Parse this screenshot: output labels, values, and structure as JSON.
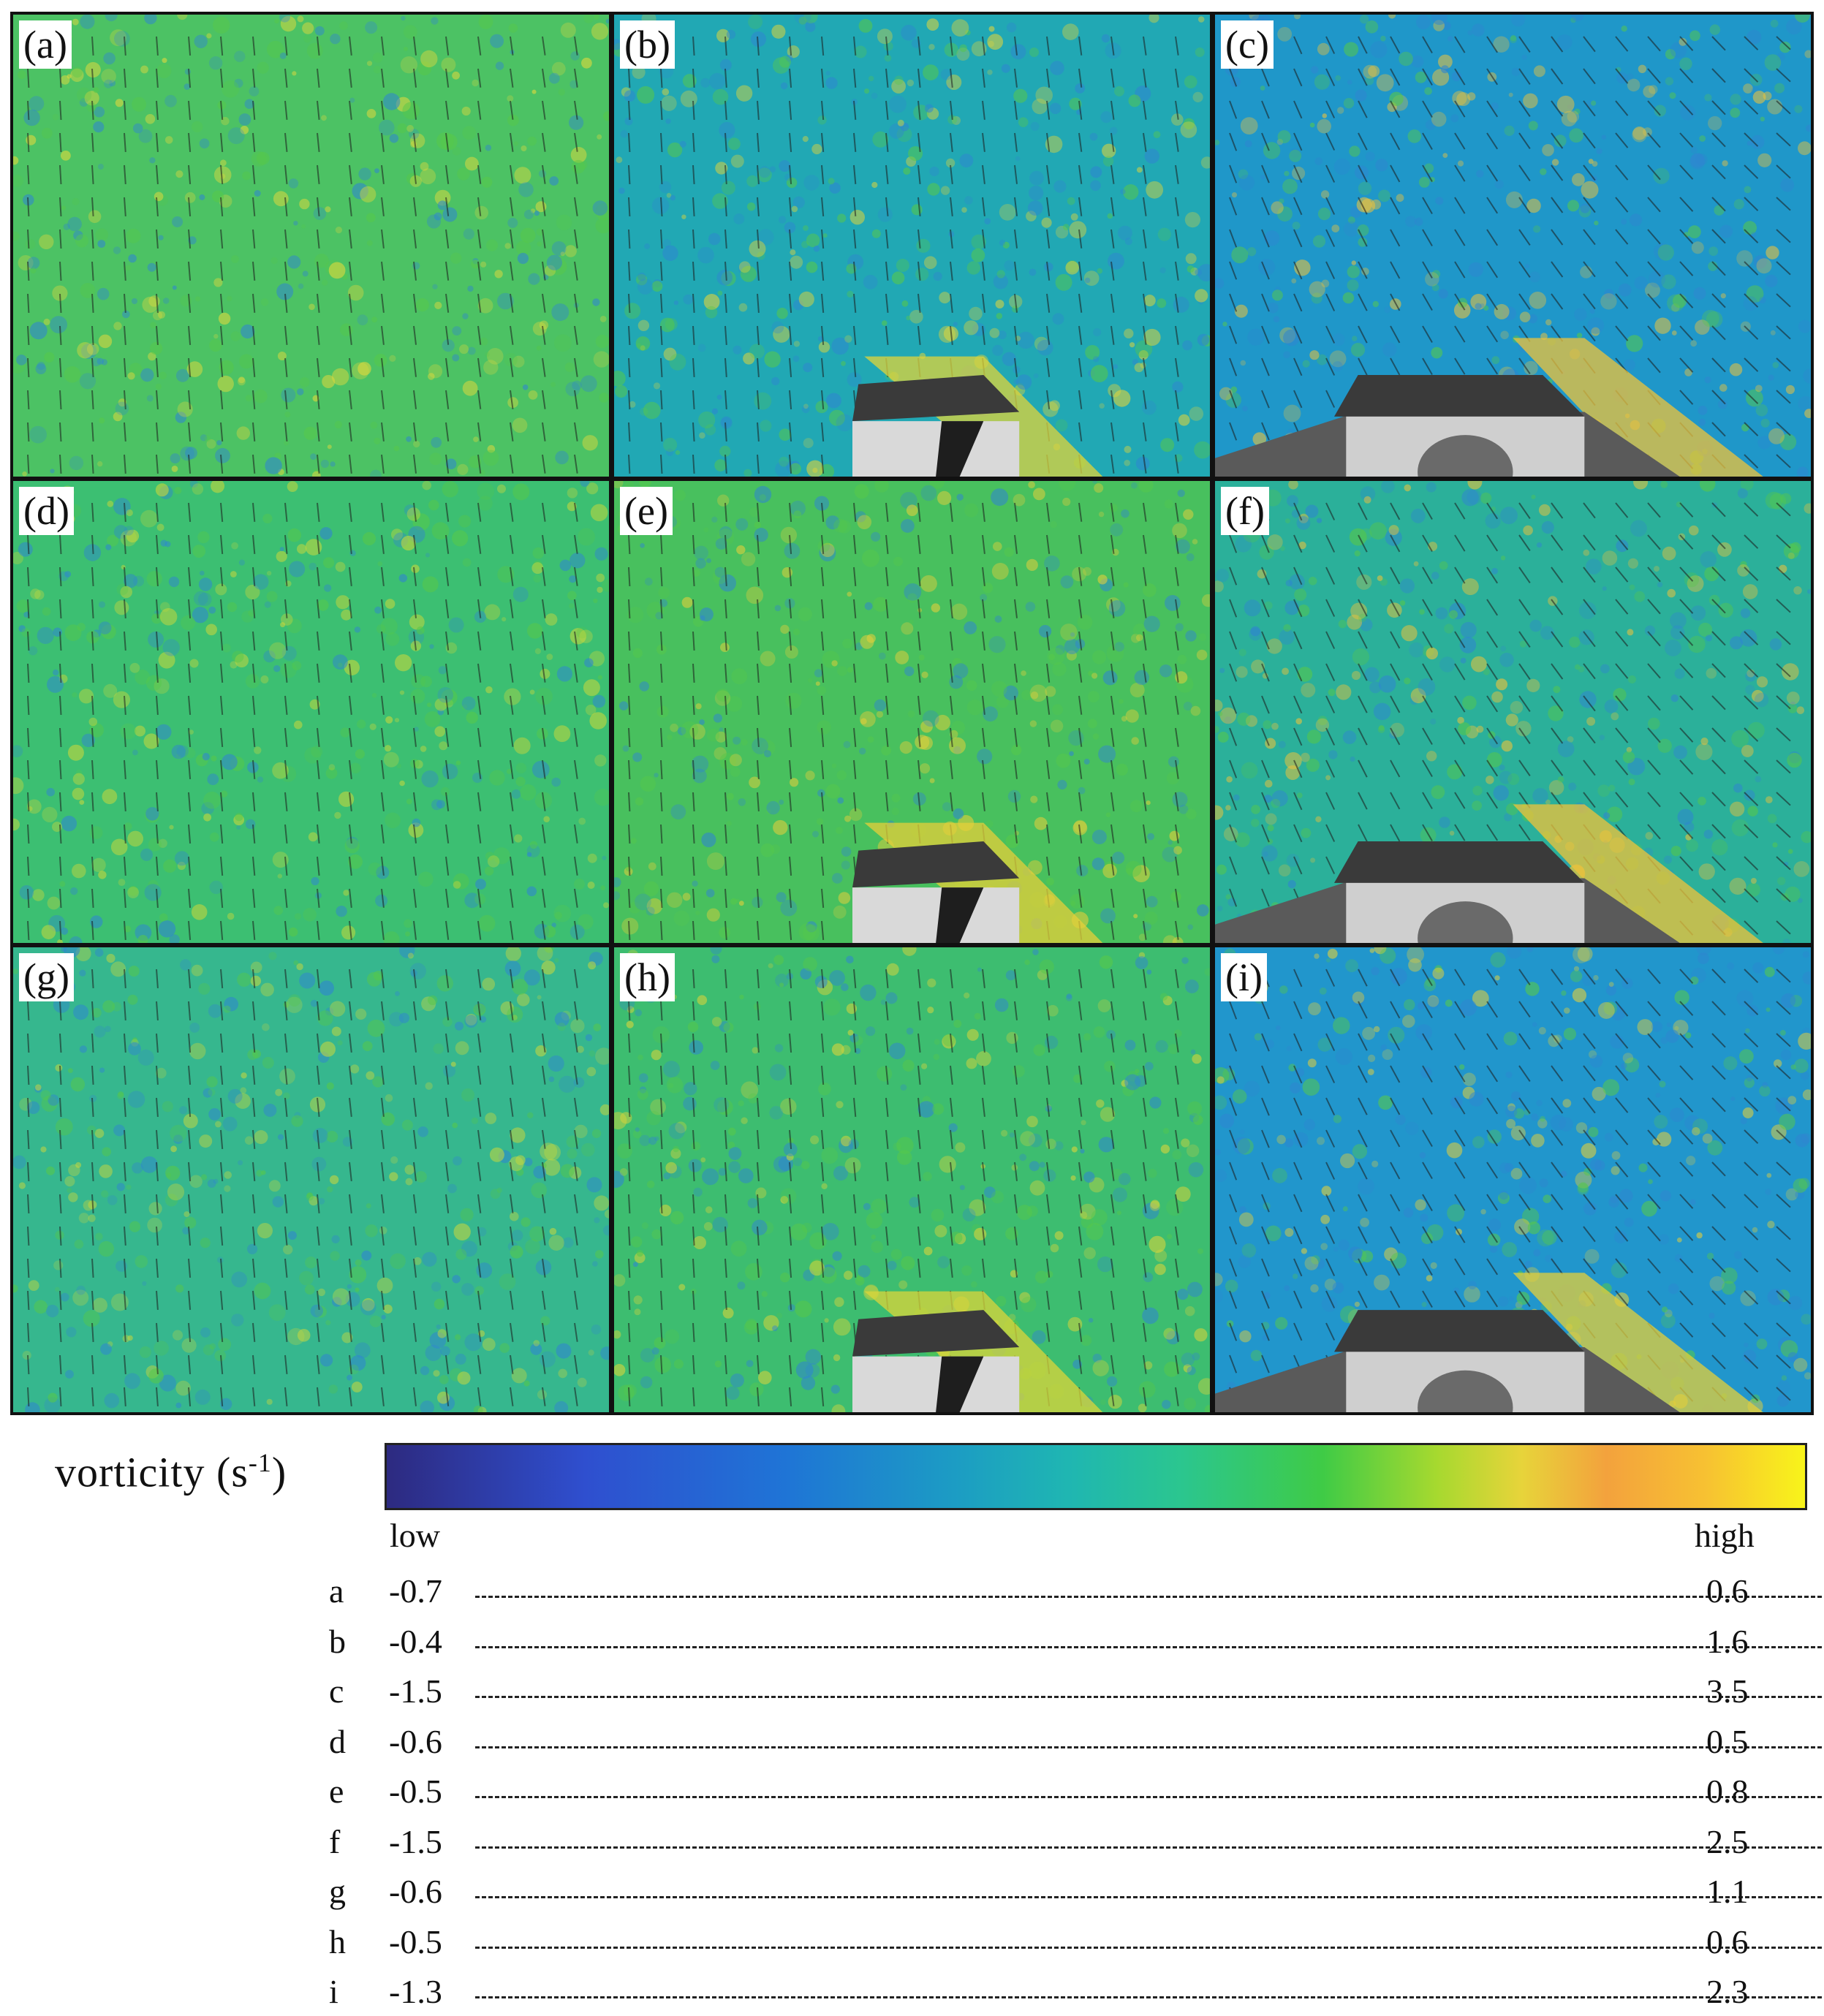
{
  "panels": [
    {
      "label": "(a)",
      "bg": "#4cc264",
      "blob": "#e2d93c",
      "object": "none"
    },
    {
      "label": "(b)",
      "bg": "#21a8b4",
      "blob": "#e0d43a",
      "object": "block"
    },
    {
      "label": "(c)",
      "bg": "#1f97c9",
      "blob": "#efc33a",
      "object": "wide"
    },
    {
      "label": "(d)",
      "bg": "#3cbf72",
      "blob": "#c8d73c",
      "object": "none"
    },
    {
      "label": "(e)",
      "bg": "#48c05e",
      "blob": "#e6cf3a",
      "object": "block"
    },
    {
      "label": "(f)",
      "bg": "#2bb09a",
      "blob": "#f0c33a",
      "object": "wide"
    },
    {
      "label": "(g)",
      "bg": "#36b78e",
      "blob": "#c4d640",
      "object": "none"
    },
    {
      "label": "(h)",
      "bg": "#3dbd70",
      "blob": "#dcd53a",
      "object": "block"
    },
    {
      "label": "(i)",
      "bg": "#2196cc",
      "blob": "#e4cf3a",
      "object": "wide"
    }
  ],
  "colorbar": {
    "title": "vorticity  (s",
    "title_sup": "-1",
    "title_end": ")",
    "low_label": "low",
    "high_label": "high"
  },
  "ranges": [
    {
      "key": "a",
      "low": "-0.7",
      "high": "0.6"
    },
    {
      "key": "b",
      "low": "-0.4",
      "high": "1.6"
    },
    {
      "key": "c",
      "low": "-1.5",
      "high": "3.5"
    },
    {
      "key": "d",
      "low": "-0.6",
      "high": "0.5"
    },
    {
      "key": "e",
      "low": "-0.5",
      "high": "0.8"
    },
    {
      "key": "f",
      "low": "-1.5",
      "high": "2.5"
    },
    {
      "key": "g",
      "low": "-0.6",
      "high": "1.1"
    },
    {
      "key": "h",
      "low": "-0.5",
      "high": "0.6"
    },
    {
      "key": "i",
      "low": "-1.3",
      "high": "2.3"
    }
  ]
}
